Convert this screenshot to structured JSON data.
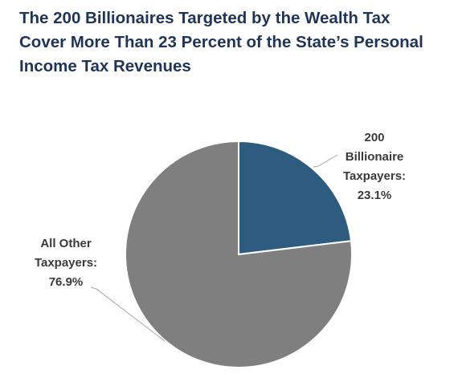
{
  "title_lines": [
    "The 200 Billionaires Targeted by the Wealth Tax",
    "Cover More Than 23 Percent of the State’s Personal",
    "Income Tax Revenues"
  ],
  "chart_data": {
    "type": "pie",
    "title": "The 200 Billionaires Targeted by the Wealth Tax Cover More Than 23 Percent of the State’s Personal Income Tax Revenues",
    "slices": [
      {
        "label_lines": [
          "200",
          "Billionaire",
          "Taxpayers:",
          "23.1%"
        ],
        "value": 23.1,
        "color": "#2d5c7f"
      },
      {
        "label_lines": [
          "All Other",
          "Taxpayers:",
          "76.9%"
        ],
        "value": 76.9,
        "color": "#7f7f7f"
      }
    ],
    "legend": "none",
    "data_labels": "outside with leader lines"
  }
}
